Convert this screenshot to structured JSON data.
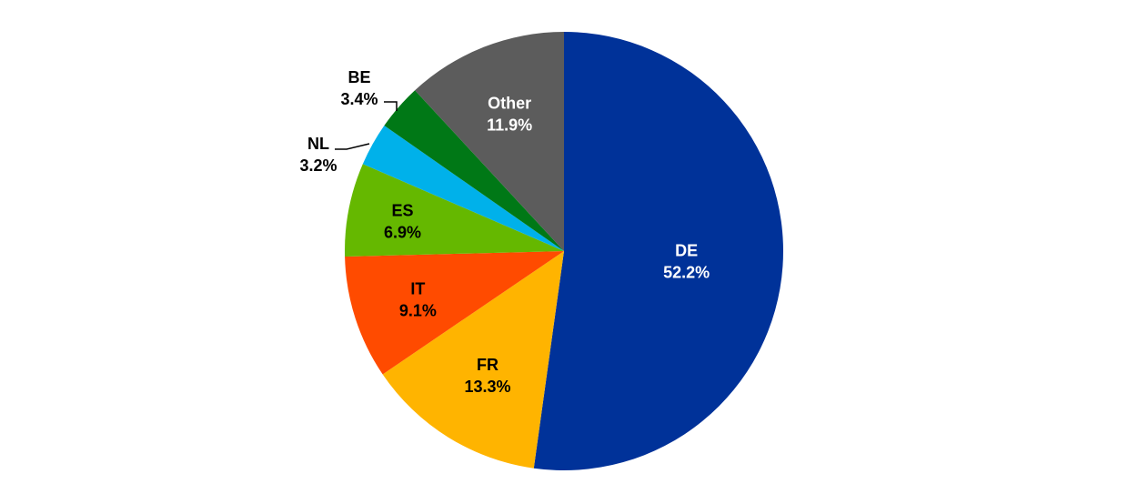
{
  "chart_data": {
    "type": "pie",
    "title": "",
    "slices": [
      {
        "name": "DE",
        "value": 52.2,
        "label": "52.2%",
        "color": "#003299",
        "label_color": "#ffffff"
      },
      {
        "name": "FR",
        "value": 13.3,
        "label": "13.3%",
        "color": "#ffb400",
        "label_color": "#000000"
      },
      {
        "name": "IT",
        "value": 9.1,
        "label": "9.1%",
        "color": "#ff4b00",
        "label_color": "#000000"
      },
      {
        "name": "ES",
        "value": 6.9,
        "label": "6.9%",
        "color": "#65b800",
        "label_color": "#000000"
      },
      {
        "name": "NL",
        "value": 3.2,
        "label": "3.2%",
        "color": "#00b1ea",
        "label_color": "#000000"
      },
      {
        "name": "BE",
        "value": 3.4,
        "label": "3.4%",
        "color": "#007816",
        "label_color": "#000000"
      },
      {
        "name": "Other",
        "value": 11.9,
        "label": "11.9%",
        "color": "#5c5c5c",
        "label_color": "#ffffff"
      }
    ],
    "start_angle": "12 o'clock",
    "direction": "clockwise",
    "legend": "none"
  }
}
